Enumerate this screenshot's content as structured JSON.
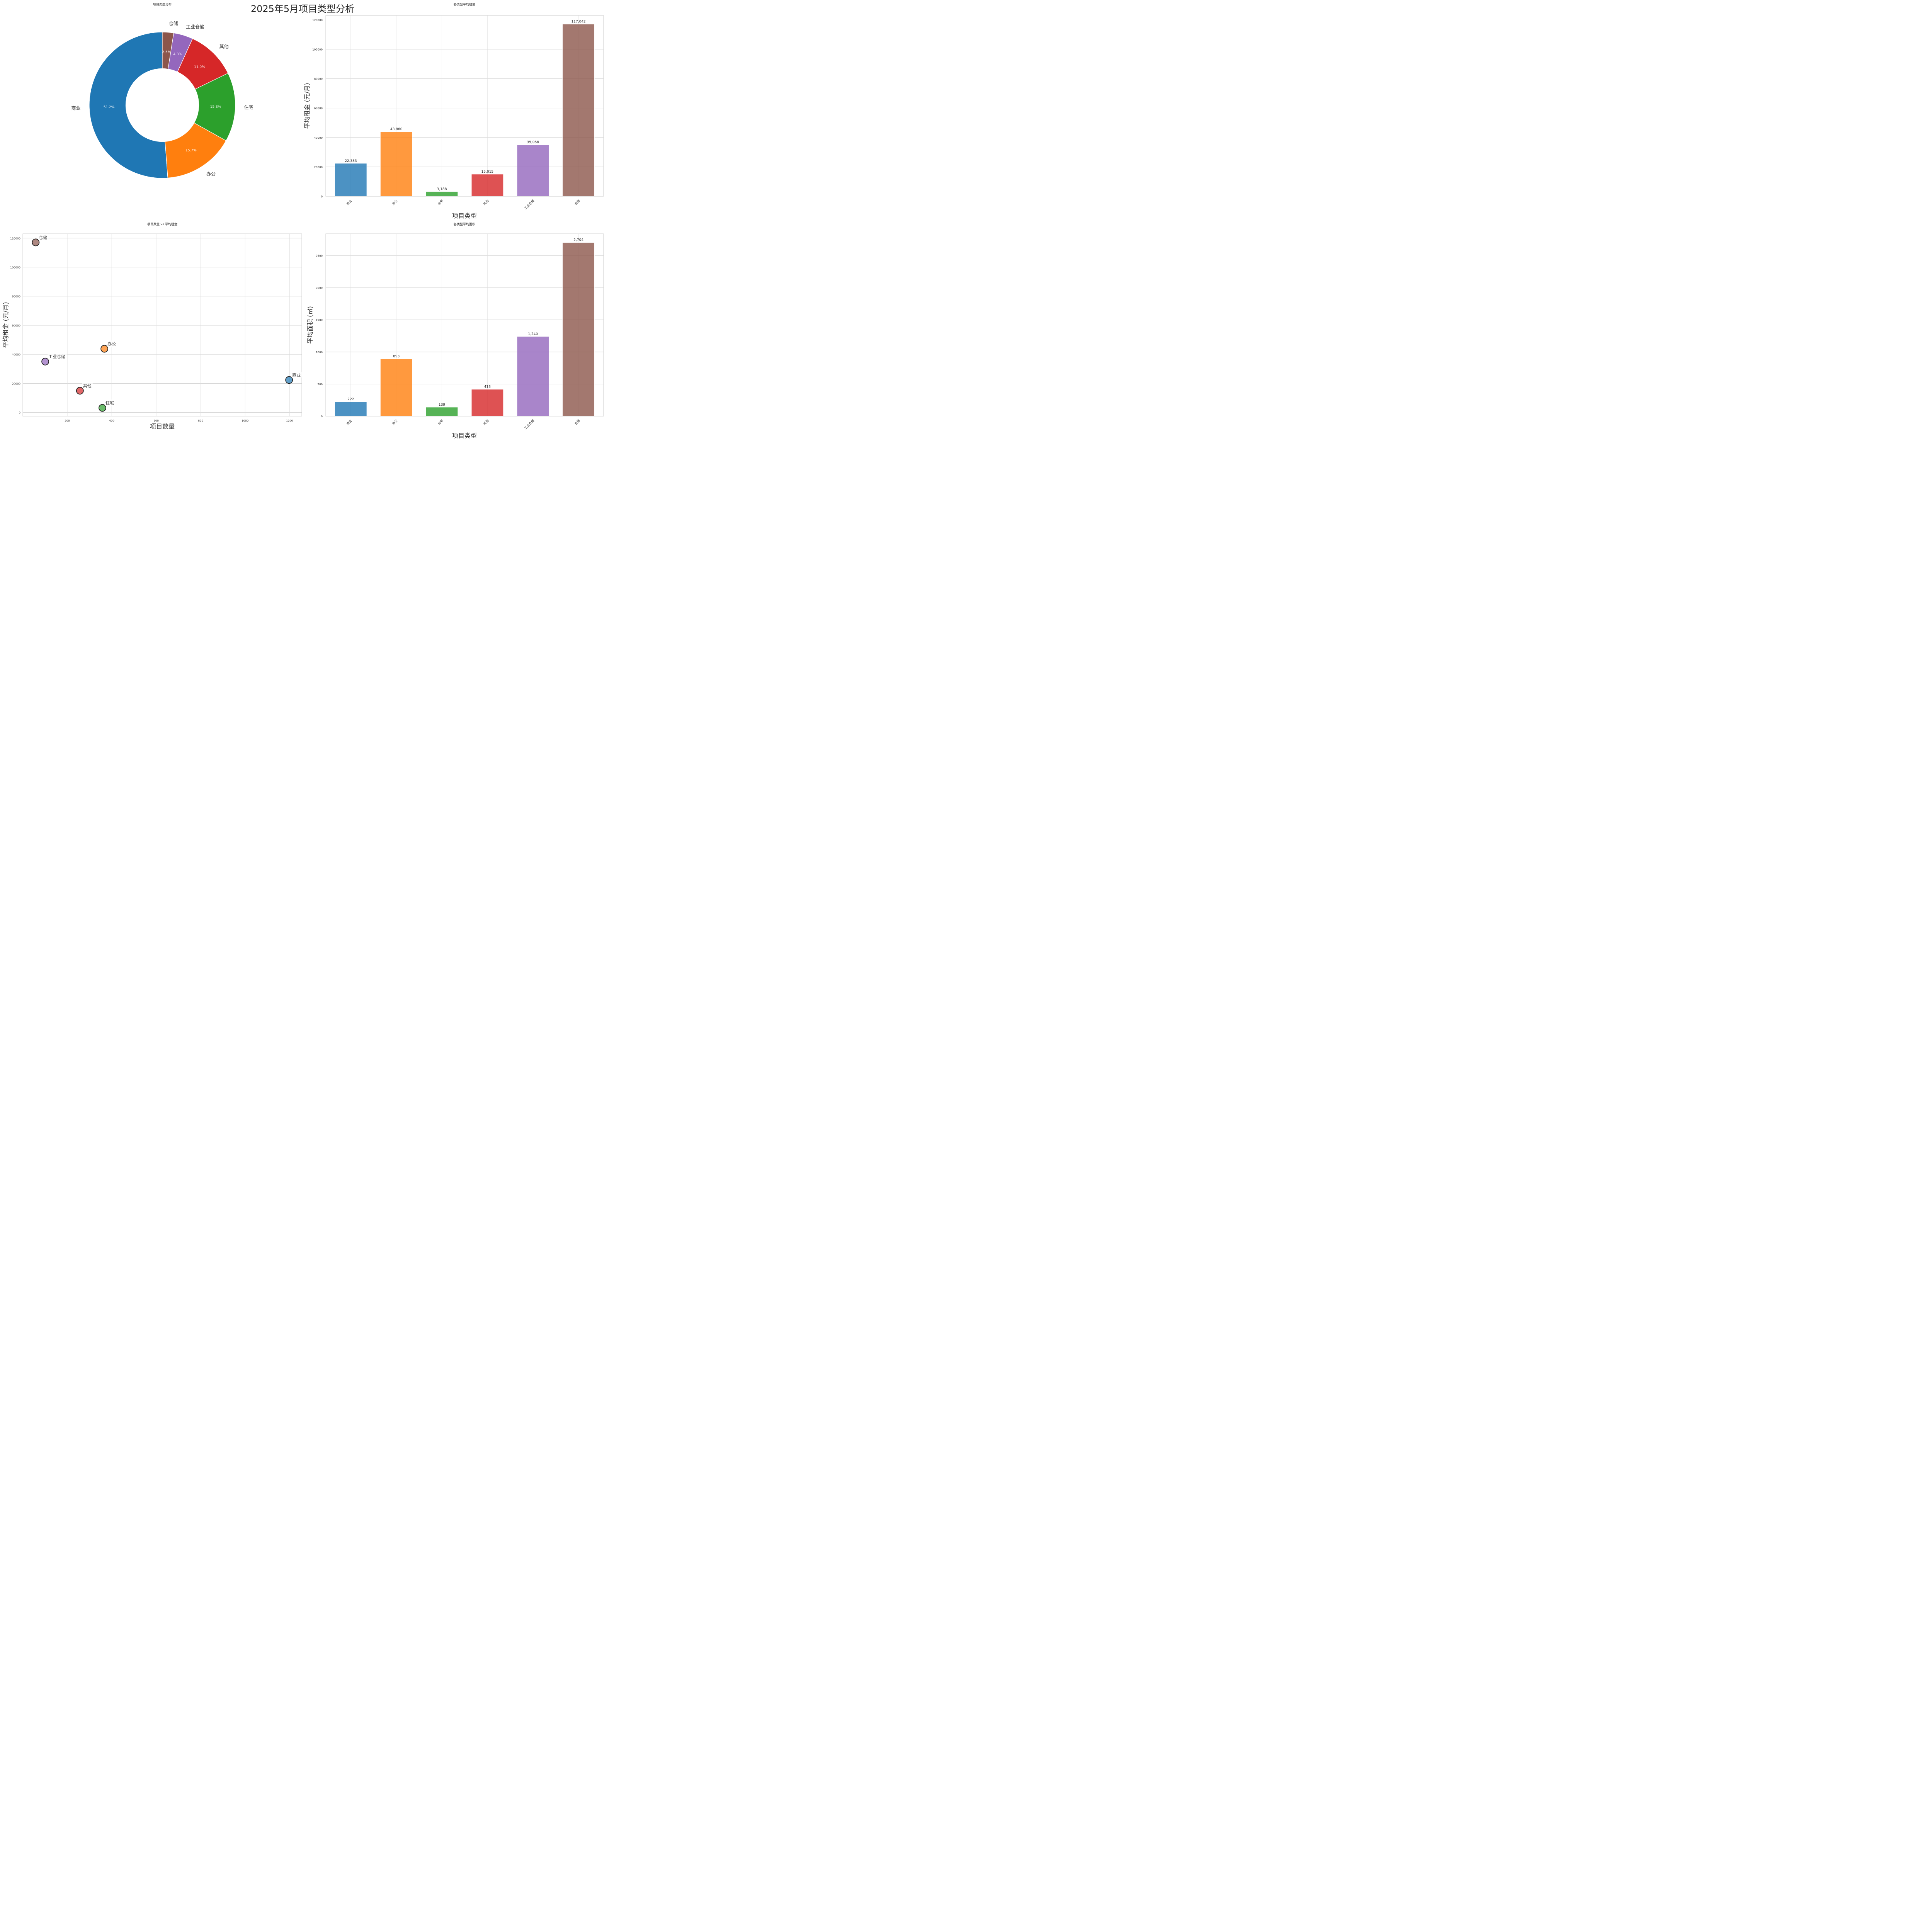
{
  "figure": {
    "suptitle": "2025年5月项目类型分析"
  },
  "colors": {
    "商业": "#1f77b4",
    "办公": "#ff7f0e",
    "住宅": "#2ca02c",
    "其他": "#d62728",
    "工业仓储": "#9467bd",
    "仓储": "#8c564b",
    "grid": "#cccccc",
    "text": "#262626"
  },
  "chart_data": [
    {
      "id": "pie",
      "type": "pie",
      "variant": "donut",
      "title": "项目类型分布",
      "labels": [
        "商业",
        "办公",
        "住宅",
        "其他",
        "工业仓储",
        "仓储"
      ],
      "values": [
        51.2,
        15.7,
        15.3,
        11.0,
        4.3,
        2.5
      ],
      "pct_labels": [
        "51.2%",
        "15.7%",
        "15.3%",
        "11.0%",
        "4.3%",
        "2.5%"
      ],
      "start_angle_deg": 90,
      "direction": "counterclockwise",
      "hole_ratio": 0.5
    },
    {
      "id": "rent_bar",
      "type": "bar",
      "title": "各类型平均租金",
      "xlabel": "项目类型",
      "ylabel": "平均租金 (元/月)",
      "categories": [
        "商业",
        "办公",
        "住宅",
        "其他",
        "工业仓储",
        "仓储"
      ],
      "values": [
        22383,
        43880,
        3188,
        15015,
        35058,
        117042
      ],
      "value_labels": [
        "22,383",
        "43,880",
        "3,188",
        "15,015",
        "35,058",
        "117,042"
      ],
      "yticks": [
        0,
        20000,
        40000,
        60000,
        80000,
        100000,
        120000
      ],
      "ylim": [
        0,
        123000
      ],
      "grid": true
    },
    {
      "id": "scatter",
      "type": "scatter",
      "title": "项目数量 vs 平均租金",
      "xlabel": "项目数量",
      "ylabel": "平均租金 (元/月)",
      "points": [
        {
          "label": "商业",
          "x": 1198,
          "y": 22383
        },
        {
          "label": "办公",
          "x": 367,
          "y": 43880
        },
        {
          "label": "住宅",
          "x": 358,
          "y": 3188
        },
        {
          "label": "其他",
          "x": 257,
          "y": 15015
        },
        {
          "label": "工业仓储",
          "x": 101,
          "y": 35058
        },
        {
          "label": "仓储",
          "x": 58,
          "y": 117042
        }
      ],
      "xticks": [
        200,
        400,
        600,
        800,
        1000,
        1200
      ],
      "yticks": [
        0,
        20000,
        40000,
        60000,
        80000,
        100000,
        120000
      ],
      "xlim": [
        0,
        1255
      ],
      "ylim": [
        -2500,
        123000
      ],
      "grid": true
    },
    {
      "id": "area_bar",
      "type": "bar",
      "title": "各类型平均面积",
      "xlabel": "项目类型",
      "ylabel": "平均面积 (㎡)",
      "categories": [
        "商业",
        "办公",
        "住宅",
        "其他",
        "工业仓储",
        "仓储"
      ],
      "values": [
        222,
        893,
        139,
        418,
        1240,
        2704
      ],
      "value_labels": [
        "222",
        "893",
        "139",
        "418",
        "1,240",
        "2,704"
      ],
      "yticks": [
        0,
        500,
        1000,
        1500,
        2000,
        2500
      ],
      "ylim": [
        0,
        2840
      ],
      "grid": true
    }
  ]
}
